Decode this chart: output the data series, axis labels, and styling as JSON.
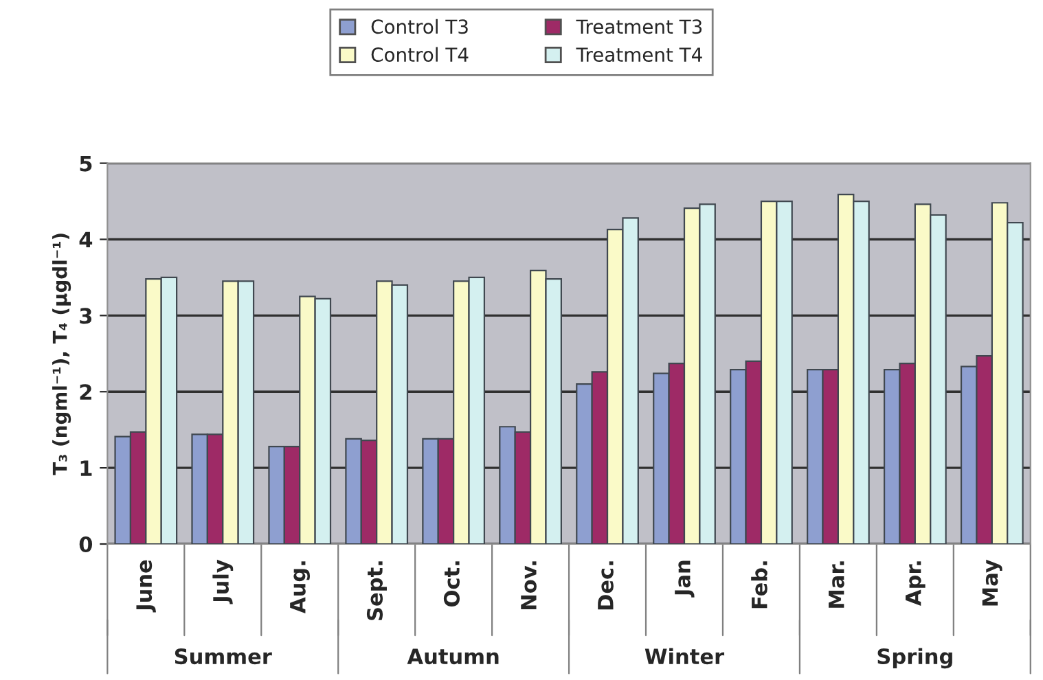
{
  "chart_data": {
    "type": "bar",
    "ylabel": "T₃ (ngml⁻¹), T₄ (µgdl⁻¹)",
    "categories": [
      "June",
      "July",
      "Aug.",
      "Sept.",
      "Oct.",
      "Nov.",
      "Dec.",
      "Jan",
      "Feb.",
      "Mar.",
      "Apr.",
      "May"
    ],
    "series": [
      {
        "name": "Control T3",
        "color": "#8e9fd0",
        "values": [
          1.41,
          1.44,
          1.28,
          1.38,
          1.38,
          1.54,
          2.1,
          2.24,
          2.29,
          2.29,
          2.29,
          2.33
        ]
      },
      {
        "name": "Treatment T3",
        "color": "#9e2a66",
        "values": [
          1.47,
          1.44,
          1.28,
          1.36,
          1.38,
          1.47,
          2.26,
          2.37,
          2.4,
          2.29,
          2.37,
          2.47
        ]
      },
      {
        "name": "Control T4",
        "color": "#fafac8",
        "values": [
          3.48,
          3.45,
          3.25,
          3.45,
          3.45,
          3.59,
          4.13,
          4.41,
          4.5,
          4.59,
          4.46,
          4.48
        ]
      },
      {
        "name": "Treatment T4",
        "color": "#d4f0f0",
        "values": [
          3.5,
          3.45,
          3.22,
          3.4,
          3.5,
          3.48,
          4.28,
          4.46,
          4.5,
          4.5,
          4.32,
          4.22
        ]
      }
    ],
    "ylim": [
      0,
      5
    ],
    "yticks": [
      0,
      1,
      2,
      3,
      4,
      5
    ],
    "grid": "y",
    "legend": "top",
    "annotations": [
      "Summer",
      "Autumn",
      "Winter",
      "Spring"
    ]
  }
}
